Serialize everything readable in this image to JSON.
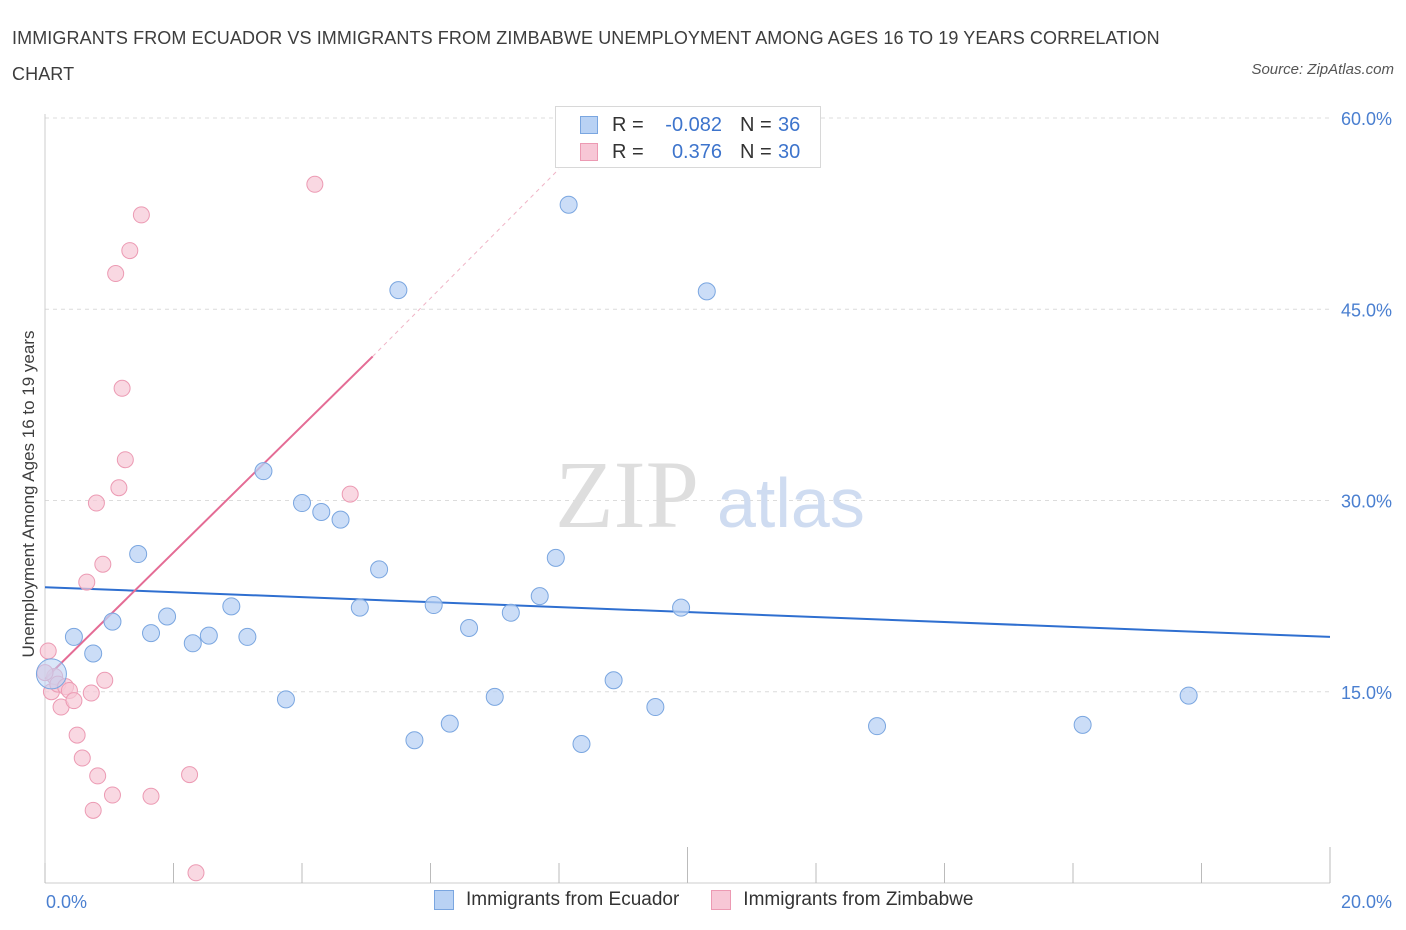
{
  "title": "IMMIGRANTS FROM ECUADOR VS IMMIGRANTS FROM ZIMBABWE UNEMPLOYMENT AMONG AGES 16 TO 19 YEARS CORRELATION CHART",
  "source": "Source: ZipAtlas.com",
  "legend_top": {
    "rows": [
      {
        "r_label": "R =",
        "r_value": "-0.082",
        "n_label": "N =",
        "n_value": "36"
      },
      {
        "r_label": "R =",
        "r_value": "0.376",
        "n_label": "N =",
        "n_value": "30"
      }
    ]
  },
  "legend_bottom": [
    "Immigrants from Ecuador",
    "Immigrants from Zimbabwe"
  ],
  "watermark": {
    "zip": "ZIP",
    "atlas": "atlas"
  },
  "colors": {
    "ecuador_fill": "#b9d2f4",
    "ecuador_stroke": "#7aa6e0",
    "ecuador_line": "#2f6fd0",
    "zimbabwe_fill": "#f7c7d6",
    "zimbabwe_stroke": "#ec9ab3",
    "zimbabwe_line": "#e46c95",
    "tick_text": "#4a7fd0",
    "grid": "#dcdcdc"
  },
  "chart_data": {
    "type": "scatter",
    "title": "IMMIGRANTS FROM ECUADOR VS IMMIGRANTS FROM ZIMBABWE UNEMPLOYMENT AMONG AGES 16 TO 19 YEARS CORRELATION CHART",
    "xlabel": "",
    "ylabel": "Unemployment Among Ages 16 to 19 years",
    "xlim": [
      0,
      20
    ],
    "ylim": [
      0,
      60
    ],
    "x_tick_labels": [
      "0.0%",
      "20.0%"
    ],
    "y_ticks": [
      15,
      30,
      45,
      60
    ],
    "y_tick_labels": [
      "15.0%",
      "30.0%",
      "45.0%",
      "60.0%"
    ],
    "grid": true,
    "legend_position": "bottom",
    "series": [
      {
        "name": "Immigrants from Ecuador",
        "R": -0.082,
        "N": 36,
        "trend": {
          "x": [
            0,
            20
          ],
          "y": [
            23.2,
            19.3
          ]
        },
        "points": [
          {
            "x": 0.1,
            "y": 16.4
          },
          {
            "x": 0.45,
            "y": 19.3
          },
          {
            "x": 0.75,
            "y": 18.0
          },
          {
            "x": 1.05,
            "y": 20.5
          },
          {
            "x": 1.45,
            "y": 25.8
          },
          {
            "x": 1.65,
            "y": 19.6
          },
          {
            "x": 1.9,
            "y": 20.9
          },
          {
            "x": 2.3,
            "y": 18.8
          },
          {
            "x": 2.55,
            "y": 19.4
          },
          {
            "x": 2.9,
            "y": 21.7
          },
          {
            "x": 3.15,
            "y": 19.3
          },
          {
            "x": 3.4,
            "y": 32.3
          },
          {
            "x": 3.75,
            "y": 14.4
          },
          {
            "x": 4.0,
            "y": 29.8
          },
          {
            "x": 4.3,
            "y": 29.1
          },
          {
            "x": 4.6,
            "y": 28.5
          },
          {
            "x": 4.9,
            "y": 21.6
          },
          {
            "x": 5.2,
            "y": 24.6
          },
          {
            "x": 5.5,
            "y": 46.5
          },
          {
            "x": 5.75,
            "y": 11.2
          },
          {
            "x": 6.05,
            "y": 21.8
          },
          {
            "x": 6.3,
            "y": 12.5
          },
          {
            "x": 6.6,
            "y": 20.0
          },
          {
            "x": 7.0,
            "y": 14.6
          },
          {
            "x": 7.25,
            "y": 21.2
          },
          {
            "x": 7.7,
            "y": 22.5
          },
          {
            "x": 7.95,
            "y": 25.5
          },
          {
            "x": 8.15,
            "y": 53.2
          },
          {
            "x": 8.35,
            "y": 10.9
          },
          {
            "x": 8.85,
            "y": 15.9
          },
          {
            "x": 9.5,
            "y": 13.8
          },
          {
            "x": 9.9,
            "y": 21.6
          },
          {
            "x": 10.3,
            "y": 46.4
          },
          {
            "x": 12.95,
            "y": 12.3
          },
          {
            "x": 16.15,
            "y": 12.4
          },
          {
            "x": 17.8,
            "y": 14.7
          }
        ]
      },
      {
        "name": "Immigrants from Zimbabwe",
        "R": 0.376,
        "N": 30,
        "trend": {
          "x": [
            0,
            5.1
          ],
          "y": [
            16.0,
            41.3
          ]
        },
        "trend_extension": {
          "x": [
            5.1,
            8.0
          ],
          "y": [
            41.3,
            56.0
          ]
        },
        "points": [
          {
            "x": 0.05,
            "y": 18.2
          },
          {
            "x": 0.1,
            "y": 15.0
          },
          {
            "x": 0.15,
            "y": 16.2
          },
          {
            "x": 0.2,
            "y": 15.6
          },
          {
            "x": 0.25,
            "y": 13.8
          },
          {
            "x": 0.32,
            "y": 15.4
          },
          {
            "x": 0.38,
            "y": 15.1
          },
          {
            "x": 0.45,
            "y": 14.3
          },
          {
            "x": 0.5,
            "y": 11.6
          },
          {
            "x": 0.58,
            "y": 9.8
          },
          {
            "x": 0.65,
            "y": 23.6
          },
          {
            "x": 0.72,
            "y": 14.9
          },
          {
            "x": 0.75,
            "y": 5.7
          },
          {
            "x": 0.8,
            "y": 29.8
          },
          {
            "x": 0.82,
            "y": 8.4
          },
          {
            "x": 0.9,
            "y": 25.0
          },
          {
            "x": 0.93,
            "y": 15.9
          },
          {
            "x": 1.05,
            "y": 6.9
          },
          {
            "x": 1.1,
            "y": 47.8
          },
          {
            "x": 1.15,
            "y": 31.0
          },
          {
            "x": 1.2,
            "y": 38.8
          },
          {
            "x": 1.25,
            "y": 33.2
          },
          {
            "x": 1.32,
            "y": 49.6
          },
          {
            "x": 1.5,
            "y": 52.4
          },
          {
            "x": 1.65,
            "y": 6.8
          },
          {
            "x": 2.25,
            "y": 8.5
          },
          {
            "x": 2.35,
            "y": 0.8
          },
          {
            "x": 4.2,
            "y": 54.8
          },
          {
            "x": 4.75,
            "y": 30.5
          },
          {
            "x": 0.0,
            "y": 16.5
          }
        ]
      }
    ]
  }
}
